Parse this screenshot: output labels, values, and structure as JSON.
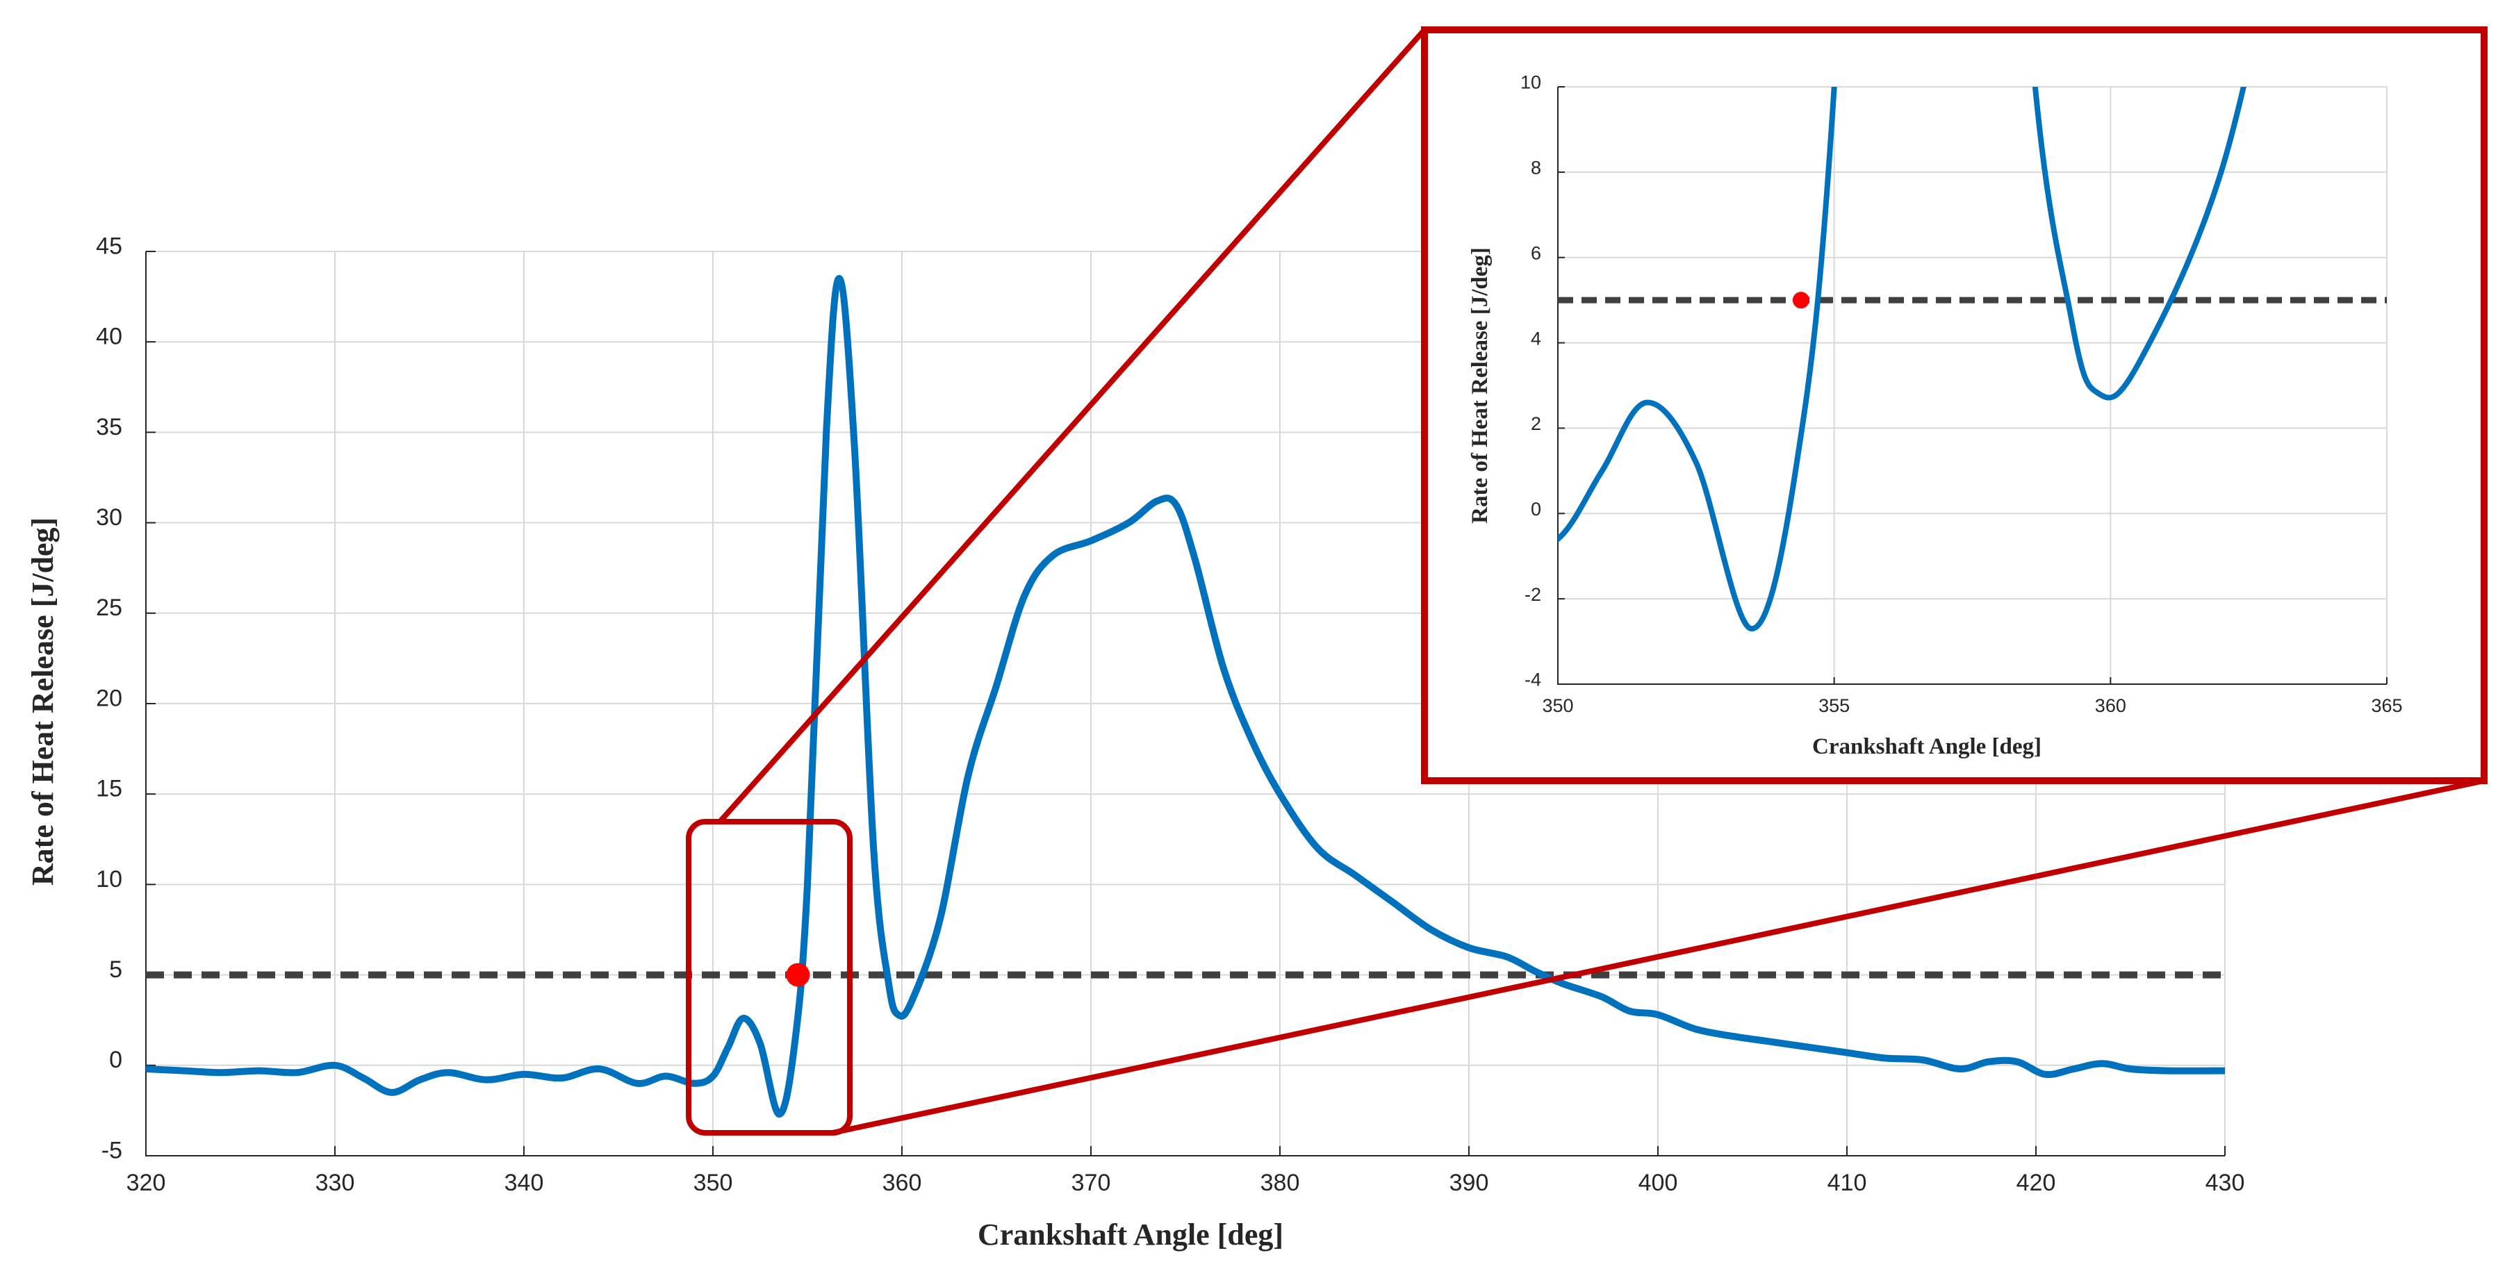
{
  "chart_data": [
    {
      "name": "main",
      "type": "line",
      "title": "",
      "xlabel": "Crankshaft Angle [deg]",
      "ylabel": "Rate of Heat Release [J/deg]",
      "xlim": [
        320,
        430
      ],
      "ylim": [
        -5,
        45
      ],
      "xticks": [
        320,
        330,
        340,
        350,
        360,
        370,
        380,
        390,
        400,
        410,
        420,
        430
      ],
      "yticks": [
        -5,
        0,
        5,
        10,
        15,
        20,
        25,
        30,
        35,
        40,
        45
      ],
      "grid": true,
      "series": [
        {
          "name": "rate_of_heat_release",
          "color": "#0072BD",
          "x": [
            320,
            322,
            324,
            326,
            328,
            330,
            331.5,
            333,
            334.5,
            336,
            338,
            340,
            342,
            344,
            346,
            347.5,
            349,
            350,
            350.8,
            351.6,
            352.5,
            353.5,
            354.3,
            355,
            356,
            356.7,
            357.5,
            358.5,
            359.3,
            359.8,
            360.5,
            362,
            363.5,
            365,
            366.5,
            368,
            370,
            372,
            373.5,
            374.5,
            375.5,
            377,
            378.5,
            380,
            382,
            384,
            386,
            388,
            390,
            392,
            393.5,
            395,
            397,
            398.5,
            400,
            402,
            404,
            406,
            408,
            410,
            412,
            414,
            416,
            417.5,
            419,
            420.5,
            422,
            423.5,
            425,
            427,
            430
          ],
          "y": [
            -0.2,
            -0.3,
            -0.4,
            -0.3,
            -0.4,
            0.0,
            -0.7,
            -1.5,
            -0.8,
            -0.4,
            -0.8,
            -0.5,
            -0.7,
            -0.2,
            -1.0,
            -0.6,
            -1.0,
            -0.6,
            1.0,
            2.6,
            1.2,
            -2.7,
            1.0,
            10.0,
            35.0,
            43.5,
            34.0,
            12.0,
            4.5,
            2.8,
            3.5,
            8.0,
            16.0,
            21.0,
            26.0,
            28.2,
            29.0,
            30.0,
            31.2,
            31.0,
            28.0,
            22.0,
            18.0,
            15.0,
            12.0,
            10.5,
            9.0,
            7.5,
            6.5,
            6.0,
            5.2,
            4.5,
            3.8,
            3.0,
            2.8,
            2.0,
            1.6,
            1.3,
            1.0,
            0.7,
            0.4,
            0.3,
            -0.2,
            0.2,
            0.2,
            -0.5,
            -0.2,
            0.1,
            -0.2,
            -0.3,
            -0.3
          ]
        }
      ],
      "threshold": {
        "y": 5,
        "style": "dashed",
        "color": "#404040"
      },
      "marker": {
        "x": 354.5,
        "y": 5,
        "color": "#ff0000"
      },
      "zoom_box": {
        "x": [
          348.5,
          357
        ],
        "y": [
          -3.8,
          13.5
        ],
        "color": "#c00000"
      }
    },
    {
      "name": "inset",
      "type": "line",
      "title": "",
      "xlabel": "Crankshaft Angle [deg]",
      "ylabel": "Rate of Heat Release [J/deg]",
      "xlim": [
        350,
        365
      ],
      "ylim": [
        -4,
        10
      ],
      "xticks": [
        350,
        355,
        360,
        365
      ],
      "yticks": [
        -4,
        -2,
        0,
        2,
        4,
        6,
        8,
        10
      ],
      "grid": true,
      "threshold": {
        "y": 5,
        "style": "dashed",
        "color": "#404040"
      },
      "marker": {
        "x": 354.4,
        "y": 5,
        "color": "#ff0000"
      }
    }
  ]
}
